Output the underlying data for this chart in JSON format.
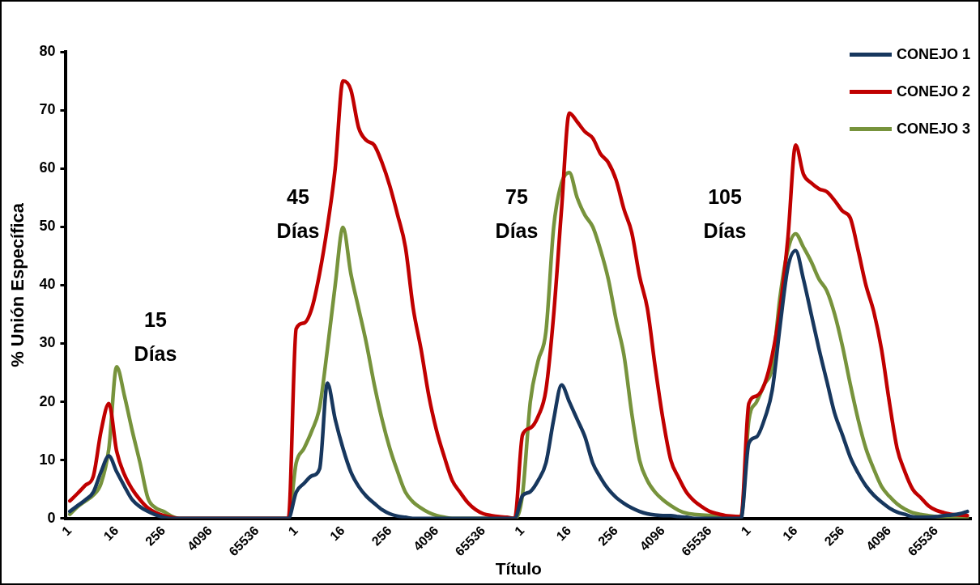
{
  "chart_data": {
    "type": "line",
    "xlabel": "Título",
    "ylabel": "% Unión Específica",
    "ylim": [
      0,
      80
    ],
    "yticks": [
      0,
      10,
      20,
      30,
      40,
      50,
      60,
      70,
      80
    ],
    "legend": "top right",
    "marker": "none",
    "line_style": "solid",
    "categories": [
      "1",
      null,
      null,
      null,
      null,
      null,
      "16",
      null,
      null,
      null,
      null,
      null,
      "256",
      null,
      null,
      null,
      null,
      null,
      "4096",
      null,
      null,
      null,
      null,
      null,
      "65536",
      null,
      null,
      null,
      null,
      "1",
      null,
      null,
      null,
      null,
      null,
      "16",
      null,
      null,
      null,
      null,
      null,
      "256",
      null,
      null,
      null,
      null,
      null,
      "4096",
      null,
      null,
      null,
      null,
      null,
      "65536",
      null,
      null,
      null,
      null,
      "1",
      null,
      null,
      null,
      null,
      null,
      "16",
      null,
      null,
      null,
      null,
      null,
      "256",
      null,
      null,
      null,
      null,
      null,
      "4096",
      null,
      null,
      null,
      null,
      null,
      "65536",
      null,
      null,
      null,
      null,
      "1",
      null,
      null,
      null,
      null,
      null,
      "16",
      null,
      null,
      null,
      null,
      null,
      "256",
      null,
      null,
      null,
      null,
      null,
      "4096",
      null,
      null,
      null,
      null,
      null,
      "65536",
      null,
      null,
      null,
      null
    ],
    "series": [
      {
        "name": "CONEJO 1",
        "color": "#17375e",
        "values": [
          1.2,
          2.2,
          3.2,
          4.5,
          8,
          10.7,
          8,
          5.5,
          3.2,
          2,
          1.2,
          0.6,
          0.2,
          0,
          0,
          0,
          0,
          0,
          0,
          0,
          0,
          0,
          0,
          0,
          0,
          0,
          0,
          0,
          0,
          4.5,
          6,
          7.3,
          8.5,
          23.2,
          17,
          12,
          8,
          5.5,
          3.8,
          2.6,
          1.5,
          0.8,
          0.4,
          0.2,
          0,
          0,
          0,
          0,
          0,
          0,
          0,
          0,
          0,
          0,
          0,
          0,
          0,
          0,
          3.9,
          4.6,
          6.5,
          9.5,
          17,
          22.9,
          20,
          17,
          14,
          9.5,
          7,
          5,
          3.6,
          2.6,
          1.8,
          1.2,
          0.8,
          0.6,
          0.5,
          0.5,
          0.3,
          0.2,
          0,
          0,
          0,
          0,
          0,
          0,
          0,
          12.9,
          14,
          17,
          22,
          33,
          43,
          45.9,
          41,
          35,
          29,
          23.5,
          18,
          14.3,
          10.5,
          7.8,
          5.6,
          4,
          2.8,
          1.8,
          1.1,
          0.7,
          0.3,
          0.2,
          0.2,
          0.3,
          0.5,
          0.6,
          0.8,
          1.2
        ]
      },
      {
        "name": "CONEJO 2",
        "color": "#c00000",
        "values": [
          3,
          4.3,
          5.7,
          7.2,
          15,
          19.7,
          11.5,
          7.5,
          5,
          3.2,
          1.8,
          1,
          0.5,
          0.2,
          0,
          0,
          0,
          0,
          0,
          0,
          0,
          0,
          0,
          0,
          0,
          0,
          0,
          0,
          0,
          32.5,
          33.5,
          36,
          42,
          50,
          60,
          75,
          73.5,
          67,
          64.8,
          64,
          61,
          57,
          52,
          46.5,
          36,
          29,
          21,
          15,
          10.5,
          6.5,
          4.5,
          2.7,
          1.5,
          0.8,
          0.5,
          0.3,
          0.2,
          0,
          14.3,
          15.5,
          17.5,
          22,
          35,
          53,
          69.5,
          68,
          66.3,
          65.2,
          62.5,
          61,
          58,
          53,
          49,
          41.5,
          36,
          26,
          17,
          10,
          7,
          4.5,
          3,
          2,
          1.2,
          0.8,
          0.5,
          0.4,
          0.3,
          19.7,
          21,
          23,
          28,
          36,
          48,
          64,
          59,
          57.5,
          56.5,
          56,
          54.5,
          52.7,
          51.5,
          46,
          40,
          35.5,
          29,
          20,
          12,
          8,
          5,
          3.6,
          2.2,
          1.4,
          1,
          0.7,
          0.6,
          0.5
        ]
      },
      {
        "name": "CONEJO 3",
        "color": "#77933c",
        "values": [
          0.7,
          2,
          3,
          4,
          6,
          12,
          26,
          21,
          15,
          9.5,
          3.5,
          1.8,
          1.2,
          0.4,
          0,
          0,
          0,
          0,
          0,
          0,
          0,
          0,
          0,
          0,
          0,
          0,
          0,
          0,
          0,
          9.5,
          12,
          15,
          19,
          29,
          40,
          49.9,
          42,
          36,
          30,
          23,
          17,
          12,
          8,
          4.5,
          2.8,
          1.8,
          1,
          0.5,
          0.2,
          0,
          0,
          0,
          0,
          0,
          0,
          0,
          0,
          0,
          4.1,
          20,
          27,
          32,
          50,
          57.5,
          59.3,
          55,
          52,
          50,
          46,
          41,
          34,
          28,
          18,
          10,
          6.5,
          4.5,
          3.2,
          2.2,
          1.4,
          0.9,
          0.7,
          0.6,
          0.5,
          0.4,
          0.3,
          0.3,
          0.3,
          16.8,
          20,
          23,
          26,
          38,
          46,
          48.8,
          46.5,
          44,
          41,
          39,
          35,
          29.5,
          23,
          17,
          12,
          8.5,
          5.5,
          3.8,
          2.5,
          1.6,
          1,
          0.7,
          0.5,
          0.3,
          0.2,
          0.2,
          0.2,
          0.2
        ]
      }
    ],
    "annotations": [
      "15\nDías",
      "45\nDías",
      "75\nDías",
      "105\nDías"
    ]
  }
}
